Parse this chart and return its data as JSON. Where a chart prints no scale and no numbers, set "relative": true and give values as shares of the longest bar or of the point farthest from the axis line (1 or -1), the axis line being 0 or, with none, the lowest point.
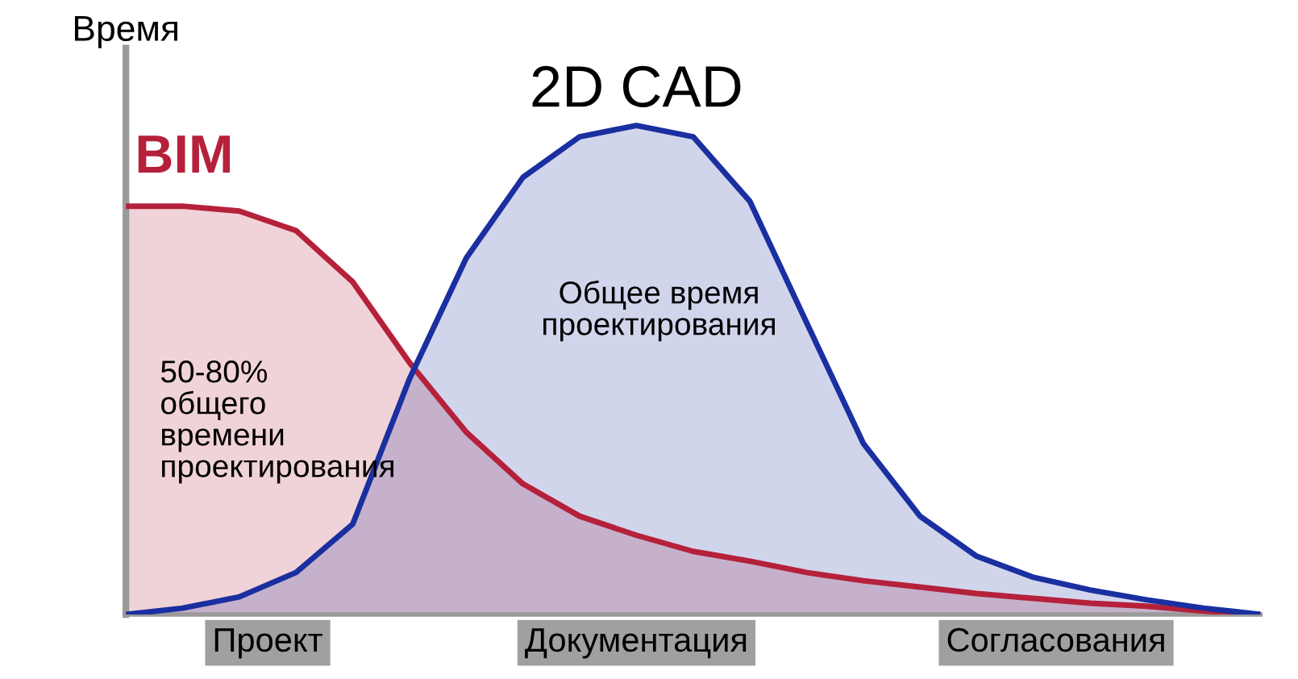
{
  "chart_data": {
    "type": "area",
    "relative": true,
    "ylabel": "Время",
    "tick_labels": false,
    "categories": [
      null,
      null,
      null,
      null,
      null,
      null,
      null,
      null,
      null,
      null,
      null,
      null,
      null,
      null,
      null,
      null,
      null,
      null,
      null,
      null,
      null
    ],
    "annotations": [
      "Общее время\nпроектирования",
      "50-80%\nобщего\nвремени\nпроектирования",
      "Проект",
      "Документация",
      "Согласования"
    ],
    "series": [
      {
        "name": "BIM",
        "color": "#b5213a",
        "values": [
          0.835,
          0.835,
          0.825,
          0.785,
          0.68,
          0.515,
          0.373,
          0.267,
          0.201,
          0.162,
          0.129,
          0.109,
          0.086,
          0.069,
          0.056,
          0.043,
          0.033,
          0.023,
          0.017,
          0.007,
          0
        ]
      },
      {
        "name": "2D CAD",
        "color": "#1a2fa0",
        "values": [
          0,
          0.013,
          0.036,
          0.086,
          0.185,
          0.482,
          0.729,
          0.894,
          0.977,
          1.0,
          0.977,
          0.845,
          0.597,
          0.35,
          0.201,
          0.119,
          0.076,
          0.05,
          0.03,
          0.013,
          0
        ]
      }
    ]
  }
}
